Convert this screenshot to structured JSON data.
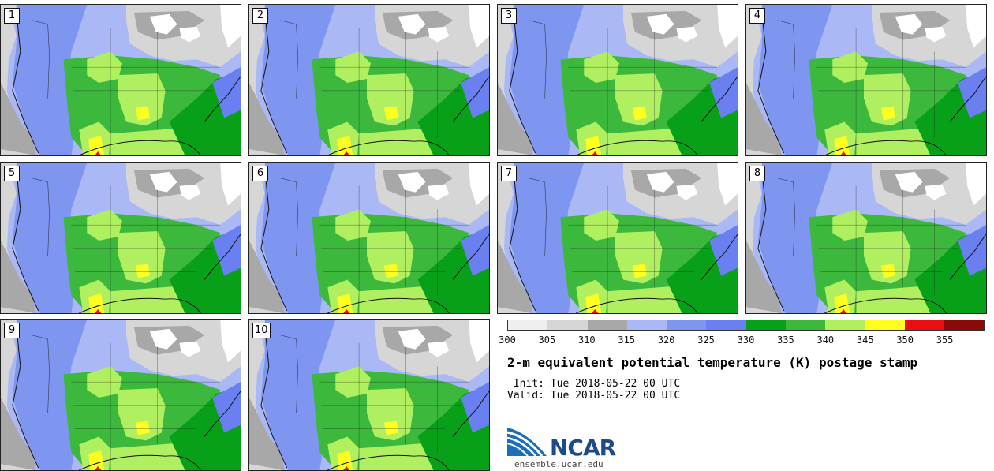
{
  "panels": [
    {
      "label": "1"
    },
    {
      "label": "2"
    },
    {
      "label": "3"
    },
    {
      "label": "4"
    },
    {
      "label": "5"
    },
    {
      "label": "6"
    },
    {
      "label": "7"
    },
    {
      "label": "8"
    },
    {
      "label": "9"
    },
    {
      "label": "10"
    }
  ],
  "colorbar": {
    "colors": [
      "#efefef",
      "#d6d6d6",
      "#a8a8a8",
      "#aab8f5",
      "#7e96f0",
      "#6a7ff0",
      "#08a018",
      "#3cb83c",
      "#b0f060",
      "#ffff20",
      "#e81010",
      "#8a0a0a"
    ],
    "ticks": [
      "300",
      "305",
      "310",
      "315",
      "320",
      "325",
      "330",
      "335",
      "340",
      "345",
      "350",
      "355"
    ]
  },
  "title": "2-m equivalent potential temperature (K) postage stamp",
  "init": " Init: Tue 2018-05-22 00 UTC",
  "valid": "Valid: Tue 2018-05-22 00 UTC",
  "logo": {
    "text": "NCAR",
    "site": "ensemble.ucar.edu"
  }
}
